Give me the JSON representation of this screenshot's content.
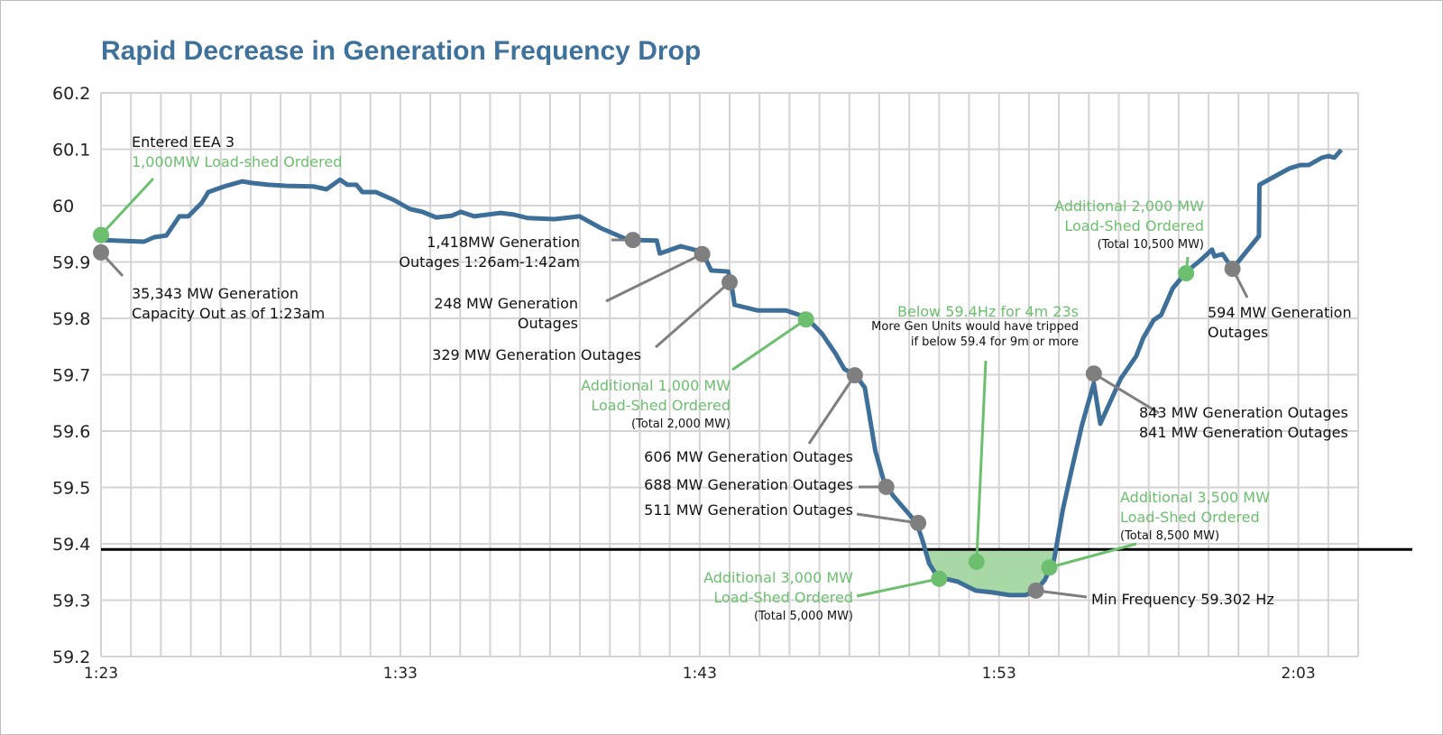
{
  "chart_data": {
    "type": "line",
    "title": "Rapid Decrease in Generation Frequency Drop",
    "xlabel": "",
    "ylabel": "",
    "xlim": [
      "1:23:00",
      "2:05:00"
    ],
    "ylim": [
      59.2,
      60.2
    ],
    "grid": true,
    "x_grid_step_minutes": 1,
    "yticks": [
      "60.2",
      "60.1",
      "60",
      "59.9",
      "59.8",
      "59.7",
      "59.6",
      "59.5",
      "59.4",
      "59.3",
      "59.2"
    ],
    "xticks": [
      "1:23",
      "1:33",
      "1:43",
      "1:53",
      "2:03"
    ],
    "threshold": 59.39,
    "colors": {
      "line": "#3d6f99",
      "green": "#6cbf6e",
      "gray": "#7f7f7f",
      "shade": "#a8d8a6",
      "title": "#3f729b"
    },
    "series": [
      {
        "x": [
          "1:23:00",
          "1:24:26",
          "1:24:47",
          "1:25:11",
          "1:25:37",
          "1:25:55",
          "1:26:22",
          "1:26:35",
          "1:27:07",
          "1:27:43",
          "1:28:04",
          "1:28:36",
          "1:29:12",
          "1:30:06",
          "1:30:32",
          "1:30:59",
          "1:31:14",
          "1:31:32",
          "1:31:44",
          "1:32:11",
          "1:32:47",
          "1:33:19",
          "1:33:44",
          "1:34:12",
          "1:34:43",
          "1:35:01",
          "1:35:28",
          "1:35:54",
          "1:36:21",
          "1:36:48",
          "1:37:15",
          "1:38:09",
          "1:38:59",
          "1:39:42",
          "1:40:32",
          "1:40:46",
          "1:41:34",
          "1:41:40",
          "1:42:22",
          "1:43:05",
          "1:43:23",
          "1:43:57",
          "1:44:03",
          "1:44:10",
          "1:44:56",
          "1:45:53",
          "1:46:33",
          "1:47:05",
          "1:47:32",
          "1:47:50",
          "1:48:13",
          "1:48:31",
          "1:48:43",
          "1:48:52",
          "1:49:10",
          "1:49:28",
          "1:50:15",
          "1:50:27",
          "1:50:40",
          "1:50:57",
          "1:51:37",
          "1:52:13",
          "1:52:45",
          "1:53:21",
          "1:53:53",
          "1:54:14",
          "1:54:32",
          "1:54:50",
          "1:55:08",
          "1:55:26",
          "1:55:47",
          "1:56:10",
          "1:56:23",
          "1:57:04",
          "1:57:35",
          "1:57:49",
          "1:58:10",
          "1:58:25",
          "1:58:48",
          "1:59:15",
          "1:59:45",
          "2:00:07",
          "2:00:12",
          "2:00:28",
          "2:00:48",
          "2:01:41",
          "2:01:42",
          "2:02:42",
          "2:03:04",
          "2:03:21",
          "2:03:47",
          "2:04:01",
          "2:04:12",
          "2:04:26"
        ],
        "y": [
          59.939,
          59.936,
          59.944,
          59.947,
          59.981,
          59.981,
          60.005,
          60.024,
          60.034,
          60.043,
          60.04,
          60.037,
          60.035,
          60.034,
          60.029,
          60.046,
          60.037,
          60.037,
          60.024,
          60.024,
          60.01,
          59.994,
          59.989,
          59.979,
          59.982,
          59.989,
          59.981,
          59.984,
          59.987,
          59.984,
          59.978,
          59.976,
          59.981,
          59.96,
          59.941,
          59.939,
          59.938,
          59.915,
          59.928,
          59.918,
          59.885,
          59.883,
          59.864,
          59.824,
          59.814,
          59.814,
          59.802,
          59.773,
          59.738,
          59.71,
          59.699,
          59.677,
          59.613,
          59.565,
          59.509,
          59.485,
          59.437,
          59.405,
          59.365,
          59.341,
          59.333,
          59.317,
          59.314,
          59.309,
          59.309,
          59.317,
          59.336,
          59.37,
          59.461,
          59.533,
          59.613,
          59.685,
          59.613,
          59.693,
          59.733,
          59.765,
          59.797,
          59.806,
          59.853,
          59.882,
          59.904,
          59.922,
          59.91,
          59.914,
          59.888,
          59.946,
          60.037,
          60.066,
          60.072,
          60.072,
          60.085,
          60.088,
          60.085,
          60.099
        ]
      }
    ],
    "annotations": [
      {
        "marker": "green",
        "x": "1:23:00",
        "y": 59.948,
        "lines": [
          {
            "text": "Entered EEA 3",
            "color": "black"
          },
          {
            "text": "1,000MW Load-shed Ordered",
            "color": "green"
          }
        ]
      },
      {
        "marker": "gray",
        "x": "1:23:00",
        "y": 59.917,
        "lines": [
          {
            "text": "35,343 MW Generation",
            "color": "black"
          },
          {
            "text": "Capacity Out as of 1:23am",
            "color": "black"
          }
        ]
      },
      {
        "marker": "gray",
        "x": "1:40:46",
        "y": 59.939,
        "lines": [
          {
            "text": "1,418MW Generation",
            "color": "black"
          },
          {
            "text": "Outages 1:26am-1:42am",
            "color": "black"
          }
        ]
      },
      {
        "marker": "gray",
        "x": "1:43:05",
        "y": 59.914,
        "lines": [
          {
            "text": "248 MW Generation",
            "color": "black"
          },
          {
            "text": "Outages",
            "color": "black"
          }
        ]
      },
      {
        "marker": "gray",
        "x": "1:44:00",
        "y": 59.864,
        "lines": [
          {
            "text": "329 MW Generation Outages",
            "color": "black"
          }
        ]
      },
      {
        "marker": "green",
        "x": "1:46:33",
        "y": 59.798,
        "lines": [
          {
            "text": "Additional 1,000 MW",
            "color": "green"
          },
          {
            "text": "Load-Shed Ordered",
            "color": "green"
          },
          {
            "text": "(Total 2,000 MW)",
            "color": "black",
            "small": true
          }
        ]
      },
      {
        "marker": "gray",
        "x": "1:48:11",
        "y": 59.699,
        "lines": [
          {
            "text": "606 MW Generation Outages",
            "color": "black"
          }
        ]
      },
      {
        "marker": "gray",
        "x": "1:49:14",
        "y": 59.501,
        "lines": [
          {
            "text": "688 MW Generation Outages",
            "color": "black"
          }
        ]
      },
      {
        "marker": "gray",
        "x": "1:50:18",
        "y": 59.437,
        "lines": [
          {
            "text": "511 MW Generation Outages",
            "color": "black"
          }
        ]
      },
      {
        "marker": "green",
        "x": "1:51:00",
        "y": 59.338,
        "lines": [
          {
            "text": "Additional 3,000 MW",
            "color": "green"
          },
          {
            "text": "Load-Shed Ordered",
            "color": "green"
          },
          {
            "text": "(Total 5,000 MW)",
            "color": "black",
            "small": true
          }
        ]
      },
      {
        "marker": "green",
        "x": "1:52:15",
        "y": 59.368,
        "lines": [
          {
            "text": "Below 59.4Hz for 4m 23s",
            "color": "green"
          },
          {
            "text": "More Gen Units would have tripped",
            "color": "black",
            "small": true
          },
          {
            "text": "if below 59.4 for 9m or more",
            "color": "black",
            "small": true
          }
        ]
      },
      {
        "marker": "gray",
        "x": "1:54:14",
        "y": 59.317,
        "lines": [
          {
            "text": "Min Frequency 59.302 Hz",
            "color": "black"
          }
        ]
      },
      {
        "marker": "green",
        "x": "1:54:41",
        "y": 59.358,
        "lines": [
          {
            "text": "Additional 3,500 MW",
            "color": "green"
          },
          {
            "text": "Load-Shed Ordered",
            "color": "green"
          },
          {
            "text": "(Total 8,500 MW)",
            "color": "black",
            "small": true
          }
        ]
      },
      {
        "marker": "gray",
        "x": "1:56:10",
        "y": 59.702,
        "lines": [
          {
            "text": "843 MW Generation Outages",
            "color": "black"
          },
          {
            "text": "841 MW Generation Outages",
            "color": "black"
          }
        ]
      },
      {
        "marker": "green",
        "x": "1:59:15",
        "y": 59.88,
        "lines": [
          {
            "text": "Additional 2,000 MW",
            "color": "green"
          },
          {
            "text": "Load-Shed Ordered",
            "color": "green"
          },
          {
            "text": "(Total 10,500 MW)",
            "color": "black",
            "small": true
          }
        ]
      },
      {
        "marker": "gray",
        "x": "2:00:48",
        "y": 59.888,
        "lines": [
          {
            "text": "594 MW Generation",
            "color": "black"
          },
          {
            "text": "Outages",
            "color": "black"
          }
        ]
      }
    ]
  }
}
